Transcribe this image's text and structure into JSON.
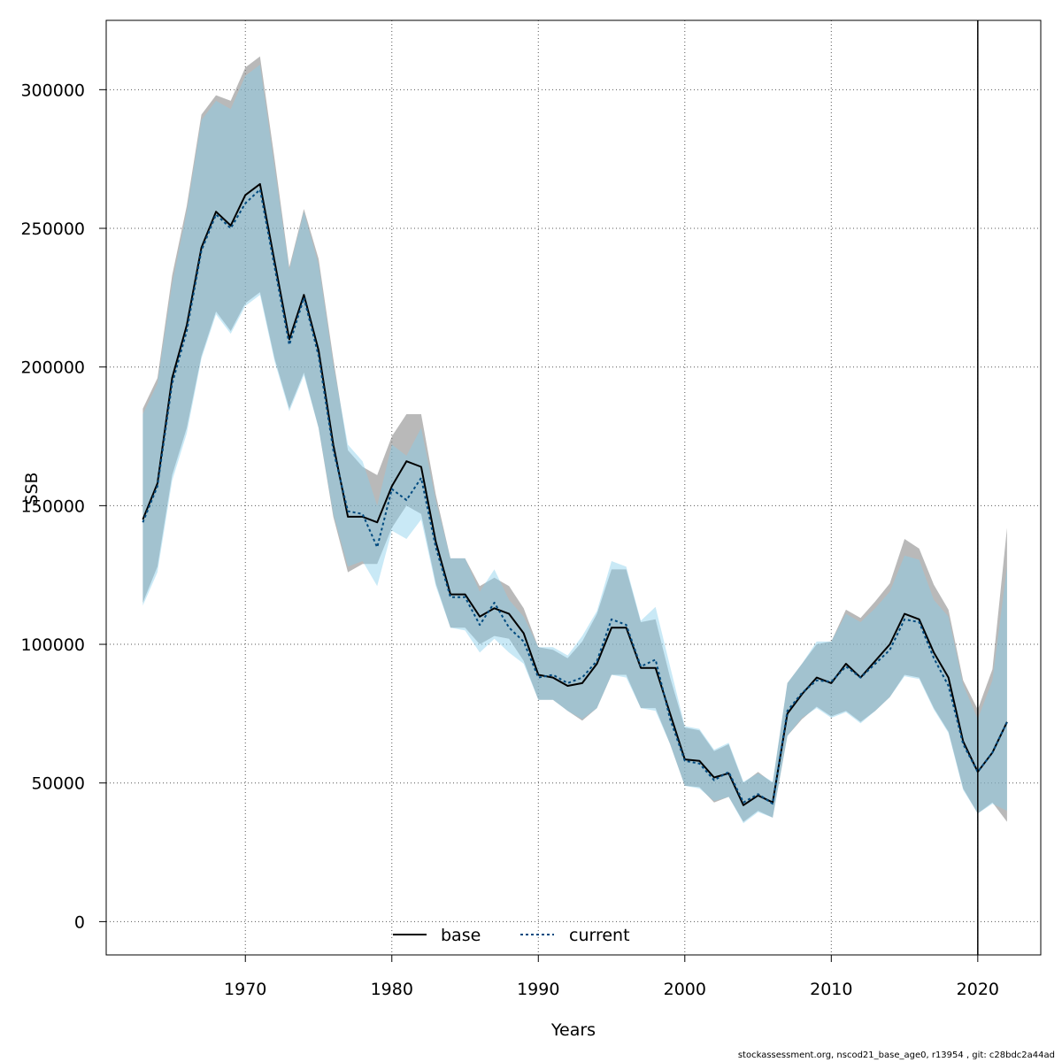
{
  "chart_data": {
    "type": "line",
    "xlabel": "Years",
    "ylabel": "SSB",
    "xlim": [
      1960.5,
      2024.3
    ],
    "ylim": [
      -12000,
      325000
    ],
    "x_ticks": [
      1970,
      1980,
      1990,
      2000,
      2010,
      2020
    ],
    "y_ticks": [
      0,
      50000,
      100000,
      150000,
      200000,
      250000,
      300000
    ],
    "grid": true,
    "vline_x": 2020,
    "legend_position": "bottom-center",
    "years": [
      1963,
      1964,
      1965,
      1966,
      1967,
      1968,
      1969,
      1970,
      1971,
      1972,
      1973,
      1974,
      1975,
      1976,
      1977,
      1978,
      1979,
      1980,
      1981,
      1982,
      1983,
      1984,
      1985,
      1986,
      1987,
      1988,
      1989,
      1990,
      1991,
      1992,
      1993,
      1994,
      1995,
      1996,
      1997,
      1998,
      1999,
      2000,
      2001,
      2002,
      2003,
      2004,
      2005,
      2006,
      2007,
      2008,
      2009,
      2010,
      2011,
      2012,
      2013,
      2014,
      2015,
      2016,
      2017,
      2018,
      2019,
      2020,
      2021,
      2022
    ],
    "series": [
      {
        "name": "base",
        "color": "#000000",
        "band_color": "#808080",
        "values": [
          145000,
          158000,
          196000,
          215000,
          243000,
          256000,
          251000,
          262000,
          266000,
          238000,
          210000,
          226000,
          206000,
          172000,
          146000,
          146000,
          144000,
          157000,
          166000,
          164000,
          137000,
          118000,
          118000,
          110000,
          113000,
          111000,
          104000,
          89000,
          88000,
          85000,
          86000,
          93000,
          106000,
          106000,
          91500,
          91500,
          75000,
          58500,
          58000,
          52000,
          53500,
          42000,
          45500,
          43000,
          75000,
          82000,
          88000,
          86000,
          93000,
          88000,
          94000,
          100000,
          111000,
          109000,
          97000,
          88000,
          65000,
          54000,
          61000,
          72000
        ],
        "lower": [
          115000,
          128000,
          161000,
          178000,
          204000,
          220000,
          213000,
          223000,
          227000,
          203000,
          185000,
          198000,
          178000,
          146000,
          126000,
          129000,
          129000,
          142000,
          150000,
          147000,
          122000,
          106000,
          106000,
          100000,
          103000,
          102000,
          94000,
          80000,
          80000,
          76000,
          72500,
          77000,
          89000,
          89000,
          77000,
          77000,
          64000,
          49000,
          48500,
          43000,
          45000,
          36000,
          40000,
          37500,
          67000,
          73000,
          77500,
          74000,
          76000,
          72000,
          76000,
          81000,
          89000,
          88000,
          77000,
          68500,
          48000,
          39000,
          43000,
          36000
        ],
        "upper": [
          185000,
          196000,
          233000,
          258000,
          291000,
          298000,
          296000,
          308000,
          312000,
          275000,
          236000,
          257000,
          239000,
          203000,
          170000,
          164000,
          161000,
          175000,
          183000,
          183000,
          154000,
          131000,
          131000,
          121000,
          124000,
          121000,
          113000,
          99000,
          98000,
          95000,
          101000,
          111000,
          127000,
          127000,
          108000,
          109000,
          88000,
          70000,
          69000,
          61500,
          64000,
          50000,
          54000,
          50000,
          86000,
          93000,
          100000,
          101000,
          112500,
          109500,
          115500,
          122000,
          138000,
          134500,
          121500,
          112500,
          87000,
          76500,
          91000,
          142000
        ]
      },
      {
        "name": "current",
        "color": "#004a7f",
        "band_color": "#87ceeb",
        "values": [
          144000,
          157000,
          194000,
          213000,
          242000,
          255000,
          250000,
          259000,
          264000,
          236000,
          208000,
          225000,
          204000,
          170000,
          148000,
          147000,
          135000,
          156000,
          152000,
          160000,
          135000,
          117000,
          117000,
          107000,
          115000,
          106000,
          101000,
          88000,
          89000,
          86000,
          88000,
          94000,
          109000,
          107000,
          92000,
          94500,
          73000,
          58000,
          57000,
          51000,
          54000,
          43000,
          46000,
          42500,
          76000,
          82500,
          87000,
          86500,
          92000,
          88000,
          93000,
          98000,
          109000,
          108000,
          95000,
          85000,
          64000,
          54000,
          61000,
          72000
        ],
        "lower": [
          114000,
          126000,
          159000,
          176000,
          203000,
          219000,
          212000,
          222000,
          226000,
          202000,
          184000,
          197000,
          178000,
          147000,
          128000,
          130000,
          121000,
          141000,
          138000,
          145000,
          121000,
          106000,
          105000,
          97000,
          102000,
          97000,
          93000,
          80000,
          80000,
          76000,
          73000,
          77000,
          89000,
          88000,
          77000,
          76000,
          64000,
          49000,
          48000,
          43500,
          45000,
          35500,
          39500,
          37500,
          67000,
          73500,
          77000,
          73500,
          75500,
          71500,
          76000,
          81000,
          88500,
          87500,
          76500,
          68000,
          47500,
          39000,
          42500,
          40000
        ],
        "upper": [
          183000,
          194000,
          230000,
          256000,
          289000,
          296000,
          293000,
          305000,
          309000,
          272000,
          235000,
          256000,
          237000,
          201000,
          172000,
          166000,
          150000,
          172000,
          168000,
          178000,
          152000,
          131000,
          131000,
          119000,
          127000,
          116000,
          110000,
          99000,
          99000,
          96000,
          103000,
          112000,
          130000,
          128000,
          108500,
          113500,
          92000,
          70500,
          69500,
          62000,
          64500,
          50500,
          53500,
          50500,
          86000,
          93000,
          101000,
          101000,
          111000,
          108000,
          113000,
          119000,
          132000,
          130500,
          116000,
          110000,
          85500,
          73000,
          87000,
          128000
        ]
      }
    ]
  },
  "footnote": "stockassessment.org, nscod21_base_age0, r13954 , git: c28bdc2a44ad"
}
